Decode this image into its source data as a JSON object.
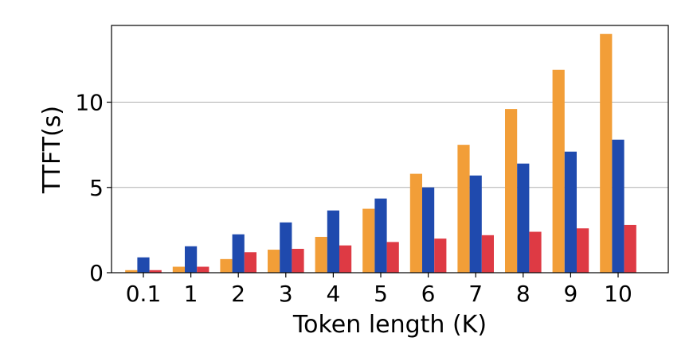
{
  "chart_data": {
    "type": "bar",
    "title": "",
    "xlabel": "Token length (K)",
    "ylabel": "TTFT(s)",
    "categories": [
      "0.1",
      "1",
      "2",
      "3",
      "4",
      "5",
      "6",
      "7",
      "8",
      "9",
      "10"
    ],
    "series": [
      {
        "color": "#F29E38",
        "values": [
          0.15,
          0.35,
          0.8,
          1.35,
          2.1,
          3.75,
          5.8,
          7.5,
          9.6,
          11.9,
          14.0
        ]
      },
      {
        "color": "#1F4AAE",
        "values": [
          0.9,
          1.55,
          2.25,
          2.95,
          3.65,
          4.35,
          5.0,
          5.7,
          6.4,
          7.1,
          7.8
        ]
      },
      {
        "color": "#DE3A44",
        "values": [
          0.15,
          0.35,
          1.2,
          1.4,
          1.6,
          1.8,
          2.0,
          2.2,
          2.4,
          2.6,
          2.8
        ]
      }
    ],
    "ylim": [
      0,
      14.5
    ],
    "yticks": [
      0,
      5,
      10
    ],
    "grid": "horizontal",
    "legend": "none"
  }
}
